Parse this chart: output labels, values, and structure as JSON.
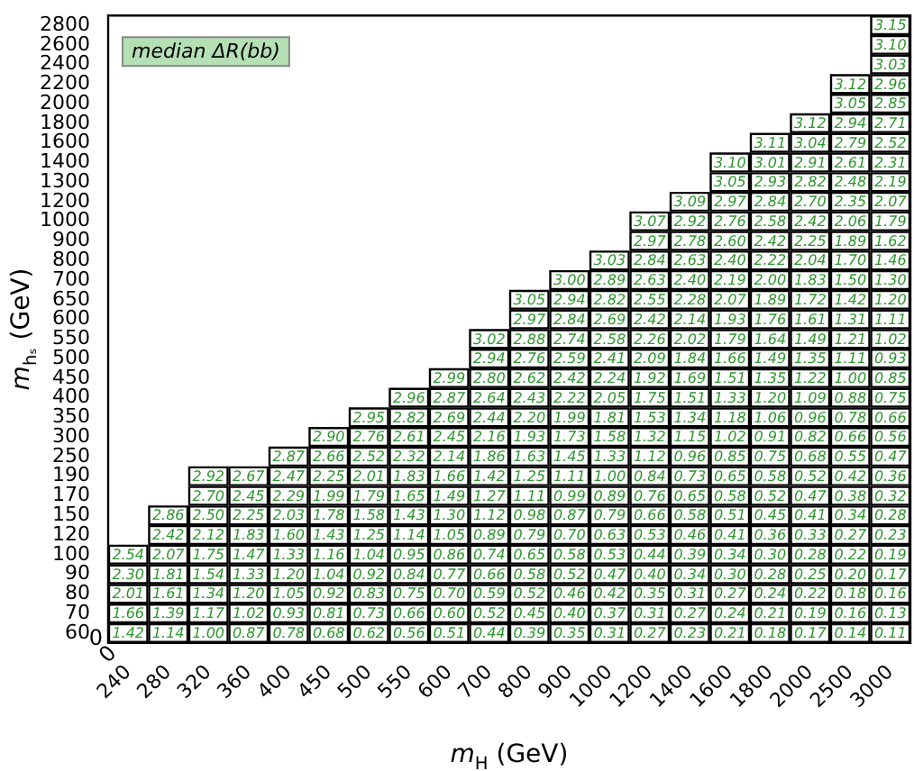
{
  "chart_data": {
    "type": "heatmap",
    "title": "median ΔR(bb)",
    "xlabel": "m$_{H}$ (GeV)",
    "ylabel": "m$_{hₛ}$ (GeV)",
    "annotations": [
      "0",
      "0"
    ],
    "data_labels": true,
    "categories": [
      "240",
      "280",
      "320",
      "360",
      "400",
      "450",
      "500",
      "550",
      "600",
      "700",
      "800",
      "900",
      "1000",
      "1200",
      "1400",
      "1600",
      "1800",
      "2000",
      "2500",
      "3000"
    ],
    "y_categories": [
      "2800",
      "2600",
      "2400",
      "2200",
      "2000",
      "1800",
      "1600",
      "1400",
      "1300",
      "1200",
      "1000",
      "900",
      "800",
      "700",
      "650",
      "600",
      "550",
      "500",
      "450",
      "400",
      "350",
      "300",
      "250",
      "190",
      "170",
      "150",
      "120",
      "100",
      "90",
      "80",
      "70",
      "60"
    ],
    "cells": [
      [
        null,
        null,
        null,
        null,
        null,
        null,
        null,
        null,
        null,
        null,
        null,
        null,
        null,
        null,
        null,
        null,
        null,
        null,
        null,
        3.15
      ],
      [
        null,
        null,
        null,
        null,
        null,
        null,
        null,
        null,
        null,
        null,
        null,
        null,
        null,
        null,
        null,
        null,
        null,
        null,
        null,
        3.1
      ],
      [
        null,
        null,
        null,
        null,
        null,
        null,
        null,
        null,
        null,
        null,
        null,
        null,
        null,
        null,
        null,
        null,
        null,
        null,
        null,
        3.03
      ],
      [
        null,
        null,
        null,
        null,
        null,
        null,
        null,
        null,
        null,
        null,
        null,
        null,
        null,
        null,
        null,
        null,
        null,
        null,
        3.12,
        2.96
      ],
      [
        null,
        null,
        null,
        null,
        null,
        null,
        null,
        null,
        null,
        null,
        null,
        null,
        null,
        null,
        null,
        null,
        null,
        null,
        3.05,
        2.85
      ],
      [
        null,
        null,
        null,
        null,
        null,
        null,
        null,
        null,
        null,
        null,
        null,
        null,
        null,
        null,
        null,
        null,
        null,
        3.12,
        2.94,
        2.71
      ],
      [
        null,
        null,
        null,
        null,
        null,
        null,
        null,
        null,
        null,
        null,
        null,
        null,
        null,
        null,
        null,
        null,
        3.11,
        3.04,
        2.79,
        2.52
      ],
      [
        null,
        null,
        null,
        null,
        null,
        null,
        null,
        null,
        null,
        null,
        null,
        null,
        null,
        null,
        null,
        3.1,
        3.01,
        2.91,
        2.61,
        2.31
      ],
      [
        null,
        null,
        null,
        null,
        null,
        null,
        null,
        null,
        null,
        null,
        null,
        null,
        null,
        null,
        null,
        3.05,
        2.93,
        2.82,
        2.48,
        2.19
      ],
      [
        null,
        null,
        null,
        null,
        null,
        null,
        null,
        null,
        null,
        null,
        null,
        null,
        null,
        null,
        3.09,
        2.97,
        2.84,
        2.7,
        2.35,
        2.07
      ],
      [
        null,
        null,
        null,
        null,
        null,
        null,
        null,
        null,
        null,
        null,
        null,
        null,
        null,
        3.07,
        2.92,
        2.76,
        2.58,
        2.42,
        2.06,
        1.79
      ],
      [
        null,
        null,
        null,
        null,
        null,
        null,
        null,
        null,
        null,
        null,
        null,
        null,
        null,
        2.97,
        2.78,
        2.6,
        2.42,
        2.25,
        1.89,
        1.62
      ],
      [
        null,
        null,
        null,
        null,
        null,
        null,
        null,
        null,
        null,
        null,
        null,
        null,
        3.03,
        2.84,
        2.63,
        2.4,
        2.22,
        2.04,
        1.7,
        1.46
      ],
      [
        null,
        null,
        null,
        null,
        null,
        null,
        null,
        null,
        null,
        null,
        null,
        3.0,
        2.89,
        2.63,
        2.4,
        2.19,
        2.0,
        1.83,
        1.5,
        1.3
      ],
      [
        null,
        null,
        null,
        null,
        null,
        null,
        null,
        null,
        null,
        null,
        3.05,
        2.94,
        2.82,
        2.55,
        2.28,
        2.07,
        1.89,
        1.72,
        1.42,
        1.2
      ],
      [
        null,
        null,
        null,
        null,
        null,
        null,
        null,
        null,
        null,
        null,
        2.97,
        2.84,
        2.69,
        2.42,
        2.14,
        1.93,
        1.76,
        1.61,
        1.31,
        1.11
      ],
      [
        null,
        null,
        null,
        null,
        null,
        null,
        null,
        null,
        null,
        3.02,
        2.88,
        2.74,
        2.58,
        2.26,
        2.02,
        1.79,
        1.64,
        1.49,
        1.21,
        1.02
      ],
      [
        null,
        null,
        null,
        null,
        null,
        null,
        null,
        null,
        null,
        2.94,
        2.76,
        2.59,
        2.41,
        2.09,
        1.84,
        1.66,
        1.49,
        1.35,
        1.11,
        0.93
      ],
      [
        null,
        null,
        null,
        null,
        null,
        null,
        null,
        null,
        2.99,
        2.8,
        2.62,
        2.42,
        2.24,
        1.92,
        1.69,
        1.51,
        1.35,
        1.22,
        1.0,
        0.85
      ],
      [
        null,
        null,
        null,
        null,
        null,
        null,
        null,
        2.96,
        2.87,
        2.64,
        2.43,
        2.22,
        2.05,
        1.75,
        1.51,
        1.33,
        1.2,
        1.09,
        0.88,
        0.75
      ],
      [
        null,
        null,
        null,
        null,
        null,
        null,
        2.95,
        2.82,
        2.69,
        2.44,
        2.2,
        1.99,
        1.81,
        1.53,
        1.34,
        1.18,
        1.06,
        0.96,
        0.78,
        0.66
      ],
      [
        null,
        null,
        null,
        null,
        null,
        2.9,
        2.76,
        2.61,
        2.45,
        2.16,
        1.93,
        1.73,
        1.58,
        1.32,
        1.15,
        1.02,
        0.91,
        0.82,
        0.66,
        0.56
      ],
      [
        null,
        null,
        null,
        null,
        2.87,
        2.66,
        2.52,
        2.32,
        2.14,
        1.86,
        1.63,
        1.45,
        1.33,
        1.12,
        0.96,
        0.85,
        0.75,
        0.68,
        0.55,
        0.47
      ],
      [
        null,
        null,
        2.92,
        2.67,
        2.47,
        2.25,
        2.01,
        1.83,
        1.66,
        1.42,
        1.25,
        1.11,
        1.0,
        0.84,
        0.73,
        0.65,
        0.58,
        0.52,
        0.42,
        0.36
      ],
      [
        null,
        null,
        2.7,
        2.45,
        2.29,
        1.99,
        1.79,
        1.65,
        1.49,
        1.27,
        1.11,
        0.99,
        0.89,
        0.76,
        0.65,
        0.58,
        0.52,
        0.47,
        0.38,
        0.32
      ],
      [
        null,
        2.86,
        2.5,
        2.25,
        2.03,
        1.78,
        1.58,
        1.43,
        1.3,
        1.12,
        0.98,
        0.87,
        0.79,
        0.66,
        0.58,
        0.51,
        0.45,
        0.41,
        0.34,
        0.28
      ],
      [
        null,
        2.42,
        2.12,
        1.83,
        1.6,
        1.43,
        1.25,
        1.14,
        1.05,
        0.89,
        0.79,
        0.7,
        0.63,
        0.53,
        0.46,
        0.41,
        0.36,
        0.33,
        0.27,
        0.23
      ],
      [
        2.54,
        2.07,
        1.75,
        1.47,
        1.33,
        1.16,
        1.04,
        0.95,
        0.86,
        0.74,
        0.65,
        0.58,
        0.53,
        0.44,
        0.39,
        0.34,
        0.3,
        0.28,
        0.22,
        0.19
      ],
      [
        2.3,
        1.81,
        1.54,
        1.33,
        1.2,
        1.04,
        0.92,
        0.84,
        0.77,
        0.66,
        0.58,
        0.52,
        0.47,
        0.4,
        0.34,
        0.3,
        0.28,
        0.25,
        0.2,
        0.17
      ],
      [
        2.01,
        1.61,
        1.34,
        1.2,
        1.05,
        0.92,
        0.83,
        0.75,
        0.7,
        0.59,
        0.52,
        0.46,
        0.42,
        0.35,
        0.31,
        0.27,
        0.24,
        0.22,
        0.18,
        0.16
      ],
      [
        1.66,
        1.39,
        1.17,
        1.02,
        0.93,
        0.81,
        0.73,
        0.66,
        0.6,
        0.52,
        0.45,
        0.4,
        0.37,
        0.31,
        0.27,
        0.24,
        0.21,
        0.19,
        0.16,
        0.13
      ],
      [
        1.42,
        1.14,
        1.0,
        0.87,
        0.78,
        0.68,
        0.62,
        0.56,
        0.51,
        0.44,
        0.39,
        0.35,
        0.31,
        0.27,
        0.23,
        0.21,
        0.18,
        0.17,
        0.14,
        0.11
      ]
    ],
    "cell_labels": [
      [
        null,
        null,
        null,
        null,
        null,
        null,
        null,
        null,
        null,
        null,
        null,
        null,
        null,
        null,
        null,
        null,
        null,
        null,
        null,
        "3.15"
      ],
      [
        null,
        null,
        null,
        null,
        null,
        null,
        null,
        null,
        null,
        null,
        null,
        null,
        null,
        null,
        null,
        null,
        null,
        null,
        null,
        "3.10"
      ],
      [
        null,
        null,
        null,
        null,
        null,
        null,
        null,
        null,
        null,
        null,
        null,
        null,
        null,
        null,
        null,
        null,
        null,
        null,
        null,
        "3.03"
      ],
      [
        null,
        null,
        null,
        null,
        null,
        null,
        null,
        null,
        null,
        null,
        null,
        null,
        null,
        null,
        null,
        null,
        null,
        null,
        "3.12",
        "2.96"
      ],
      [
        null,
        null,
        null,
        null,
        null,
        null,
        null,
        null,
        null,
        null,
        null,
        null,
        null,
        null,
        null,
        null,
        null,
        null,
        "3.05",
        "2.85"
      ],
      [
        null,
        null,
        null,
        null,
        null,
        null,
        null,
        null,
        null,
        null,
        null,
        null,
        null,
        null,
        null,
        null,
        null,
        "3.12",
        "2.94",
        "2.71"
      ],
      [
        null,
        null,
        null,
        null,
        null,
        null,
        null,
        null,
        null,
        null,
        null,
        null,
        null,
        null,
        null,
        null,
        "3.11",
        "3.04",
        "2.79",
        "2.52"
      ],
      [
        null,
        null,
        null,
        null,
        null,
        null,
        null,
        null,
        null,
        null,
        null,
        null,
        null,
        null,
        null,
        "3.10",
        "3.01",
        "2.91",
        "2.61",
        "2.31"
      ],
      [
        null,
        null,
        null,
        null,
        null,
        null,
        null,
        null,
        null,
        null,
        null,
        null,
        null,
        null,
        null,
        "3.05",
        "2.93",
        "2.82",
        "2.48",
        "2.19"
      ],
      [
        null,
        null,
        null,
        null,
        null,
        null,
        null,
        null,
        null,
        null,
        null,
        null,
        null,
        null,
        "3.09",
        "2.97",
        "2.84",
        "2.70",
        "2.35",
        "2.07"
      ],
      [
        null,
        null,
        null,
        null,
        null,
        null,
        null,
        null,
        null,
        null,
        null,
        null,
        null,
        "3.07",
        "2.92",
        "2.76",
        "2.58",
        "2.42",
        "2.06",
        "1.79"
      ],
      [
        null,
        null,
        null,
        null,
        null,
        null,
        null,
        null,
        null,
        null,
        null,
        null,
        null,
        "2.97",
        "2.78",
        "2.60",
        "2.42",
        "2.25",
        "1.89",
        "1.62"
      ],
      [
        null,
        null,
        null,
        null,
        null,
        null,
        null,
        null,
        null,
        null,
        null,
        null,
        "3.03",
        "2.84",
        "2.63",
        "2.40",
        "2.22",
        "2.04",
        "1.70",
        "1.46"
      ],
      [
        null,
        null,
        null,
        null,
        null,
        null,
        null,
        null,
        null,
        null,
        null,
        "3.00",
        "2.89",
        "2.63",
        "2.40",
        "2.19",
        "2.00",
        "1.83",
        "1.50",
        "1.30"
      ],
      [
        null,
        null,
        null,
        null,
        null,
        null,
        null,
        null,
        null,
        null,
        "3.05",
        "2.94",
        "2.82",
        "2.55",
        "2.28",
        "2.07",
        "1.89",
        "1.72",
        "1.42",
        "1.20"
      ],
      [
        null,
        null,
        null,
        null,
        null,
        null,
        null,
        null,
        null,
        null,
        "2.97",
        "2.84",
        "2.69",
        "2.42",
        "2.14",
        "1.93",
        "1.76",
        "1.61",
        "1.31",
        "1.11"
      ],
      [
        null,
        null,
        null,
        null,
        null,
        null,
        null,
        null,
        null,
        "3.02",
        "2.88",
        "2.74",
        "2.58",
        "2.26",
        "2.02",
        "1.79",
        "1.64",
        "1.49",
        "1.21",
        "1.02"
      ],
      [
        null,
        null,
        null,
        null,
        null,
        null,
        null,
        null,
        null,
        "2.94",
        "2.76",
        "2.59",
        "2.41",
        "2.09",
        "1.84",
        "1.66",
        "1.49",
        "1.35",
        "1.11",
        "0.93"
      ],
      [
        null,
        null,
        null,
        null,
        null,
        null,
        null,
        null,
        "2.99",
        "2.80",
        "2.62",
        "2.42",
        "2.24",
        "1.92",
        "1.69",
        "1.51",
        "1.35",
        "1.22",
        "1.00",
        "0.85"
      ],
      [
        null,
        null,
        null,
        null,
        null,
        null,
        null,
        "2.96",
        "2.87",
        "2.64",
        "2.43",
        "2.22",
        "2.05",
        "1.75",
        "1.51",
        "1.33",
        "1.20",
        "1.09",
        "0.88",
        "0.75"
      ],
      [
        null,
        null,
        null,
        null,
        null,
        null,
        "2.95",
        "2.82",
        "2.69",
        "2.44",
        "2.20",
        "1.99",
        "1.81",
        "1.53",
        "1.34",
        "1.18",
        "1.06",
        "0.96",
        "0.78",
        "0.66"
      ],
      [
        null,
        null,
        null,
        null,
        null,
        "2.90",
        "2.76",
        "2.61",
        "2.45",
        "2.16",
        "1.93",
        "1.73",
        "1.58",
        "1.32",
        "1.15",
        "1.02",
        "0.91",
        "0.82",
        "0.66",
        "0.56"
      ],
      [
        null,
        null,
        null,
        null,
        "2.87",
        "2.66",
        "2.52",
        "2.32",
        "2.14",
        "1.86",
        "1.63",
        "1.45",
        "1.33",
        "1.12",
        "0.96",
        "0.85",
        "0.75",
        "0.68",
        "0.55",
        "0.47"
      ],
      [
        null,
        null,
        "2.92",
        "2.67",
        "2.47",
        "2.25",
        "2.01",
        "1.83",
        "1.66",
        "1.42",
        "1.25",
        "1.11",
        "1.00",
        "0.84",
        "0.73",
        "0.65",
        "0.58",
        "0.52",
        "0.42",
        "0.36"
      ],
      [
        null,
        null,
        "2.70",
        "2.45",
        "2.29",
        "1.99",
        "1.79",
        "1.65",
        "1.49",
        "1.27",
        "1.11",
        "0.99",
        "0.89",
        "0.76",
        "0.65",
        "0.58",
        "0.52",
        "0.47",
        "0.38",
        "0.32"
      ],
      [
        null,
        "2.86",
        "2.50",
        "2.25",
        "2.03",
        "1.78",
        "1.58",
        "1.43",
        "1.30",
        "1.12",
        "0.98",
        "0.87",
        "0.79",
        "0.66",
        "0.58",
        "0.51",
        "0.45",
        "0.41",
        "0.34",
        "0.28"
      ],
      [
        null,
        "2.42",
        "2.12",
        "1.83",
        "1.60",
        "1.43",
        "1.25",
        "1.14",
        "1.05",
        "0.89",
        "0.79",
        "0.70",
        "0.63",
        "0.53",
        "0.46",
        "0.41",
        "0.36",
        "0.33",
        "0.27",
        "0.23"
      ],
      [
        "2.54",
        "2.07",
        "1.75",
        "1.47",
        "1.33",
        "1.16",
        "1.04",
        "0.95",
        "0.86",
        "0.74",
        "0.65",
        "0.58",
        "0.53",
        "0.44",
        "0.39",
        "0.34",
        "0.30",
        "0.28",
        "0.22",
        "0.19"
      ],
      [
        "2.30",
        "1.81",
        "1.54",
        "1.33",
        "1.20",
        "1.04",
        "0.92",
        "0.84",
        "0.77",
        "0.66",
        "0.58",
        "0.52",
        "0.47",
        "0.40",
        "0.34",
        "0.30",
        "0.28",
        "0.25",
        "0.20",
        "0.17"
      ],
      [
        "2.01",
        "1.61",
        "1.34",
        "1.20",
        "1.05",
        "0.92",
        "0.83",
        "0.75",
        "0.70",
        "0.59",
        "0.52",
        "0.46",
        "0.42",
        "0.35",
        "0.31",
        "0.27",
        "0.24",
        "0.22",
        "0.18",
        "0.16"
      ],
      [
        "1.66",
        "1.39",
        "1.17",
        "1.02",
        "0.93",
        "0.81",
        "0.73",
        "0.66",
        "0.60",
        "0.52",
        "0.45",
        "0.40",
        "0.37",
        "0.31",
        "0.27",
        "0.24",
        "0.21",
        "0.19",
        "0.16",
        "0.13"
      ],
      [
        "1.42",
        "1.14",
        "1.00",
        "0.87",
        "0.78",
        "0.68",
        "0.62",
        "0.56",
        "0.51",
        "0.44",
        "0.39",
        "0.35",
        "0.31",
        "0.27",
        "0.23",
        "0.21",
        "0.18",
        "0.17",
        "0.14",
        "0.11"
      ]
    ]
  }
}
